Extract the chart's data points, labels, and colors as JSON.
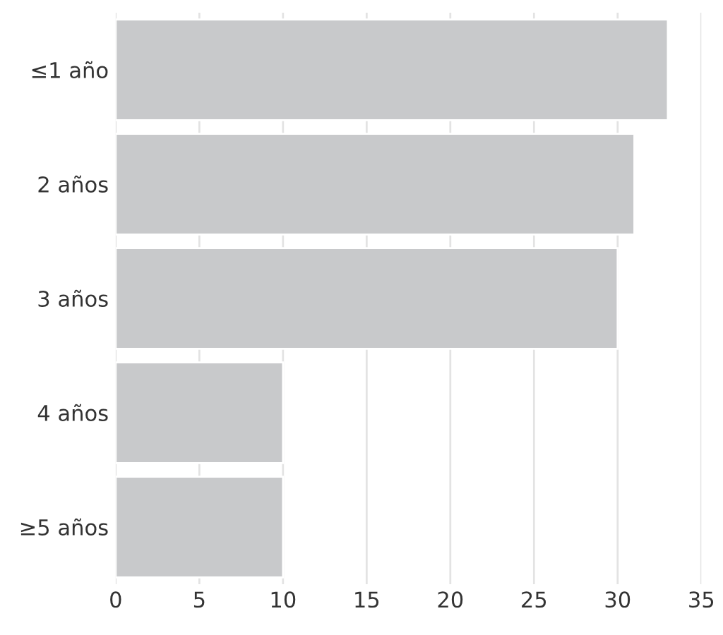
{
  "chart_data": {
    "type": "bar",
    "orientation": "horizontal",
    "categories": [
      "≤1 año",
      "2 años",
      "3 años",
      "4 años",
      "≥5 años"
    ],
    "values": [
      33,
      31,
      30,
      10,
      10
    ],
    "color": "#c8c9cb",
    "xlim": [
      0,
      35
    ],
    "xticks": [
      0,
      5,
      10,
      15,
      20,
      25,
      30,
      35
    ],
    "grid": "x"
  }
}
